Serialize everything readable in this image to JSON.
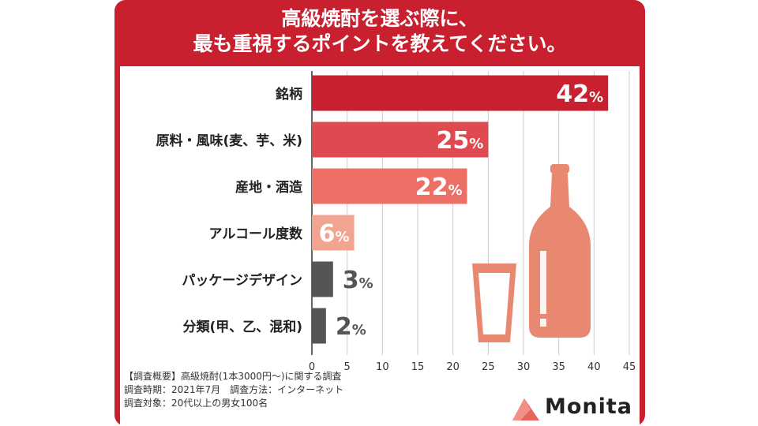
{
  "chart_data": {
    "type": "bar",
    "orientation": "horizontal",
    "title_lines": [
      "高級焼酎を選ぶ際に、",
      "最も重視するポイントを教えてください。"
    ],
    "categories": [
      "銘柄",
      "原料・風味(麦、芋、米)",
      "産地・酒造",
      "アルコール度数",
      "パッケージデザイン",
      "分類(甲、乙、混和)"
    ],
    "values": [
      42,
      25,
      22,
      6,
      3,
      2
    ],
    "value_unit": "%",
    "bar_colors": [
      "#c8202f",
      "#de4a50",
      "#ec7066",
      "#f1a590",
      "#555555",
      "#555555"
    ],
    "xlim": [
      0,
      45
    ],
    "xticks": [
      0,
      5,
      10,
      15,
      20,
      25,
      30,
      35,
      40,
      45
    ],
    "grid": true
  },
  "notes": [
    "【調査概要】高級焼酎(1本3000円〜)に関する調査",
    "調査時期：2021年7月　調査方法：インターネット",
    "調査対象：20代以上の男女100名"
  ],
  "logo": {
    "text": "Monita",
    "color": "#e8635a"
  },
  "illustration": {
    "icons": [
      "glass-icon",
      "bottle-icon"
    ],
    "color": "#e88870"
  },
  "colors": {
    "frame": "#c8202f",
    "grid": "#cccccc"
  }
}
